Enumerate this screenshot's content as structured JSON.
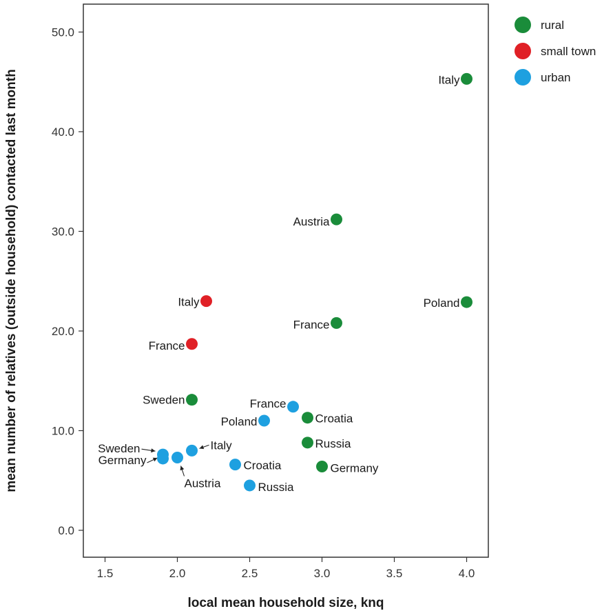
{
  "chart_data": {
    "type": "scatter",
    "xlabel": "local mean household size, knq",
    "ylabel": "mean number of relatives (outside household) contacted last month",
    "xlim": [
      1.35,
      4.15
    ],
    "ylim": [
      -2.7,
      52.8
    ],
    "xticks": [
      1.5,
      2.0,
      2.5,
      3.0,
      3.5,
      4.0
    ],
    "xtick_labels": [
      "1.5",
      "2.0",
      "2.5",
      "3.0",
      "3.5",
      "4.0"
    ],
    "yticks": [
      0,
      10,
      20,
      30,
      40,
      50
    ],
    "ytick_labels": [
      "0.0",
      "10.0",
      "20.0",
      "30.0",
      "40.0",
      "50.0"
    ],
    "grid": false,
    "legend_position": "top-right, outside plot",
    "series": [
      {
        "name": "rural",
        "color": "#1a8c3a",
        "points": [
          {
            "label": "Italy",
            "x": 4.0,
            "y": 45.3
          },
          {
            "label": "Austria",
            "x": 3.1,
            "y": 31.2
          },
          {
            "label": "Poland",
            "x": 4.0,
            "y": 22.9
          },
          {
            "label": "France",
            "x": 3.1,
            "y": 20.8
          },
          {
            "label": "Sweden",
            "x": 2.1,
            "y": 13.1
          },
          {
            "label": "Croatia",
            "x": 2.9,
            "y": 11.3
          },
          {
            "label": "Russia",
            "x": 2.9,
            "y": 8.8
          },
          {
            "label": "Germany",
            "x": 3.0,
            "y": 6.4
          }
        ]
      },
      {
        "name": "small town",
        "color": "#e02026",
        "points": [
          {
            "label": "Italy",
            "x": 2.2,
            "y": 23.0
          },
          {
            "label": "France",
            "x": 2.1,
            "y": 18.7
          }
        ]
      },
      {
        "name": "urban",
        "color": "#1ea0e0",
        "points": [
          {
            "label": "France",
            "x": 2.8,
            "y": 12.4
          },
          {
            "label": "Poland",
            "x": 2.6,
            "y": 11.0
          },
          {
            "label": "Italy",
            "x": 2.1,
            "y": 8.0
          },
          {
            "label": "Sweden",
            "x": 1.9,
            "y": 7.6
          },
          {
            "label": "Germany",
            "x": 1.9,
            "y": 7.2
          },
          {
            "label": "Austria",
            "x": 2.0,
            "y": 7.3
          },
          {
            "label": "Croatia",
            "x": 2.4,
            "y": 6.6
          },
          {
            "label": "Russia",
            "x": 2.5,
            "y": 4.5
          }
        ]
      }
    ]
  }
}
